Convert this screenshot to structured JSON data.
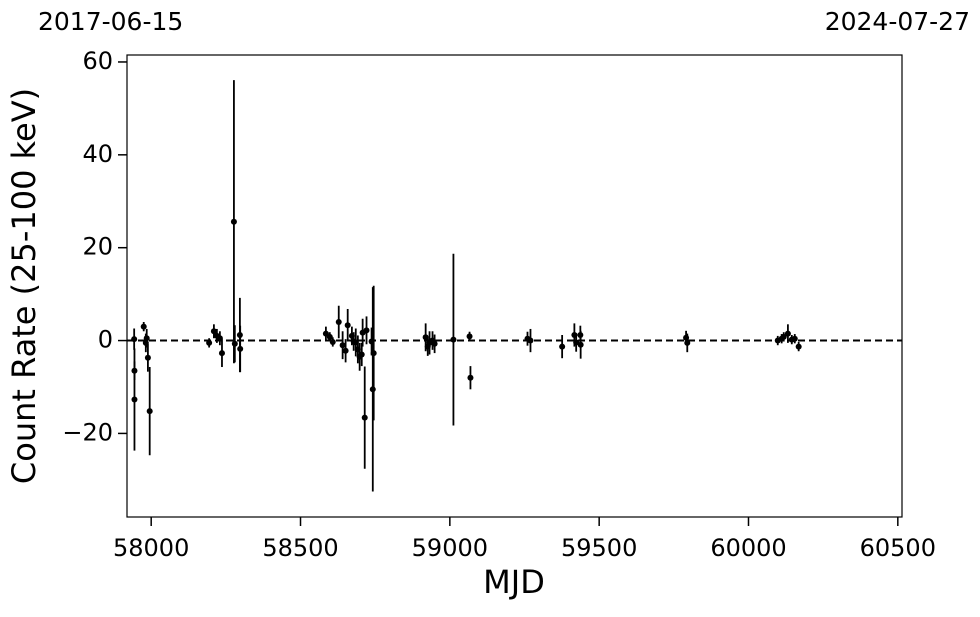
{
  "chart_data": {
    "type": "errorbar",
    "top_left_label": "2017-06-15",
    "top_right_label": "2024-07-27",
    "x_label": "MJD",
    "y_label": "Count Rate (25-100 keV)",
    "xlim": [
      57919,
      60514
    ],
    "ylim": [
      -38,
      61.5
    ],
    "xticks": [
      58000,
      58500,
      59000,
      59500,
      60000,
      60500
    ],
    "yticks": [
      {
        "value": -20,
        "label": "−20"
      },
      0,
      20,
      40,
      60
    ],
    "hline": 0,
    "hline_color": "#000000",
    "series": [
      {
        "color": "#000000",
        "x": [
          57943,
          57944,
          57944,
          57975,
          57982,
          57985,
          57989,
          57995,
          58194,
          58210,
          58220,
          58230,
          58237,
          58277,
          58280,
          58297,
          58298,
          58585,
          58598,
          58608,
          58628,
          58641,
          58651,
          58658,
          58672,
          58678,
          58685,
          58692,
          58698,
          58705,
          58708,
          58715,
          58721,
          58738,
          58742,
          58745,
          58919,
          58926,
          58932,
          58942,
          58949,
          59012,
          59066,
          59069,
          59260,
          59270,
          59376,
          59417,
          59423,
          59437,
          59438,
          59791,
          59795,
          60098,
          60111,
          60118,
          60132,
          60145,
          60155,
          60168
        ],
        "values": [
          0.3,
          -6.5,
          -12.7,
          3,
          -0.5,
          0.5,
          -3.7,
          -15.2,
          -0.5,
          2,
          1,
          0.5,
          -2.7,
          25.6,
          -0.7,
          1.2,
          -1.8,
          1.5,
          0.8,
          -0.3,
          4,
          -1,
          -2.2,
          3.3,
          1,
          -0.2,
          -0.4,
          -1.9,
          -3.5,
          -3,
          1.7,
          -16.6,
          2.2,
          -0.2,
          -10.5,
          -2.7,
          0.7,
          -1.3,
          -0.5,
          0,
          -0.7,
          0.2,
          0.9,
          -8,
          0.4,
          0,
          -1.3,
          1.2,
          -0.4,
          1.2,
          -0.9,
          0.6,
          -0.5,
          0,
          0.4,
          0.8,
          1.5,
          0.2,
          0.4,
          -1.3
        ],
        "errors": [
          2.3,
          2,
          11,
          1,
          2,
          2,
          3,
          9.5,
          1,
          1.5,
          1.5,
          1.5,
          3,
          30.5,
          4,
          8,
          5,
          1.5,
          1,
          1,
          3.5,
          3,
          2.5,
          3.5,
          2,
          2,
          3,
          3,
          3,
          2.5,
          3,
          11,
          3,
          3,
          22,
          14.5,
          3,
          2,
          2.5,
          2,
          2,
          18.5,
          1,
          2.5,
          1.5,
          2.5,
          2.5,
          2.5,
          2,
          2,
          3,
          1.5,
          2,
          1,
          1,
          1,
          2,
          1,
          1,
          1
        ]
      }
    ]
  }
}
